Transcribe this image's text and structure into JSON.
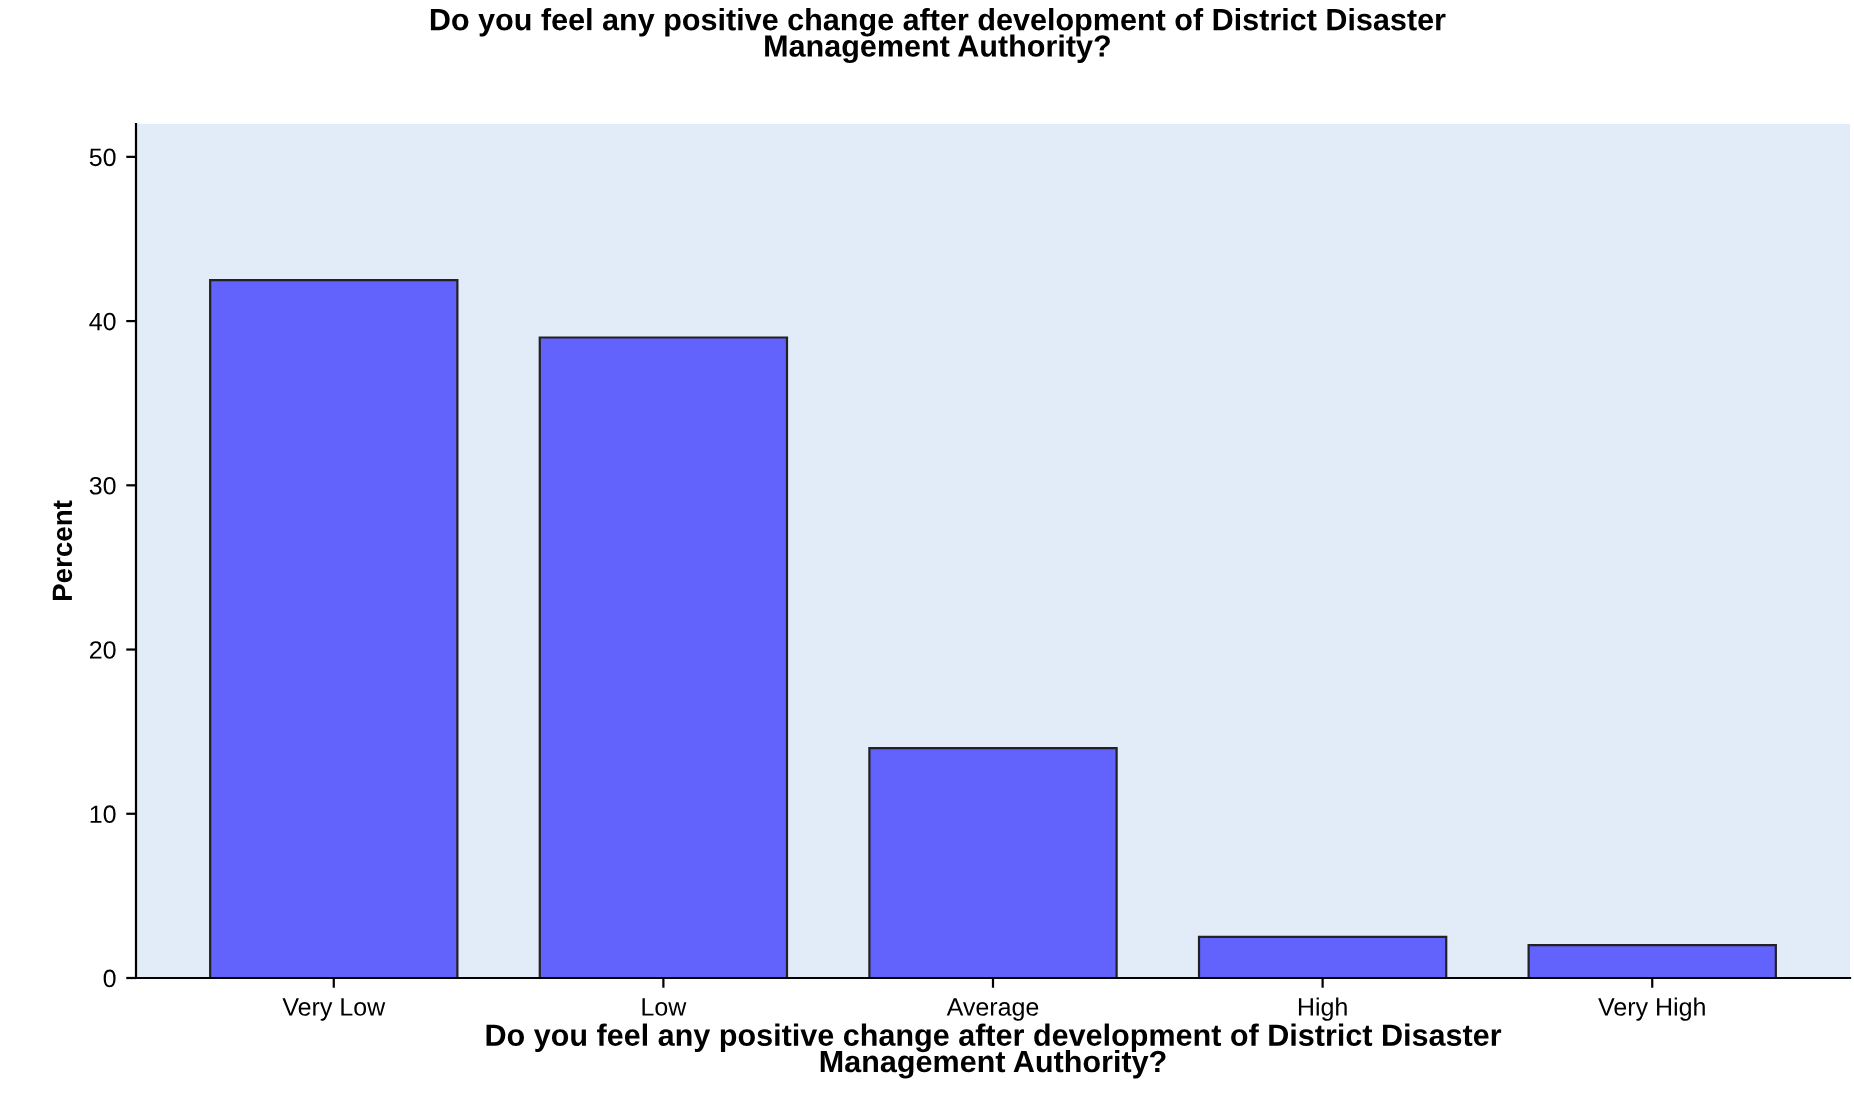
{
  "chart_data": {
    "type": "bar",
    "title": "Do you feel any positive change after development of District Disaster\nManagement Authority?",
    "xlabel": "Do you feel any positive change after development of District Disaster\nManagement Authority?",
    "ylabel": "Percent",
    "categories": [
      "Very Low",
      "Low",
      "Average",
      "High",
      "Very High"
    ],
    "values": [
      42.5,
      39.0,
      14.0,
      2.5,
      2.0
    ],
    "color": "#6262fd",
    "ylim": [
      0,
      52
    ],
    "yticks": [
      0,
      10,
      20,
      30,
      40,
      50
    ],
    "grid": false
  }
}
